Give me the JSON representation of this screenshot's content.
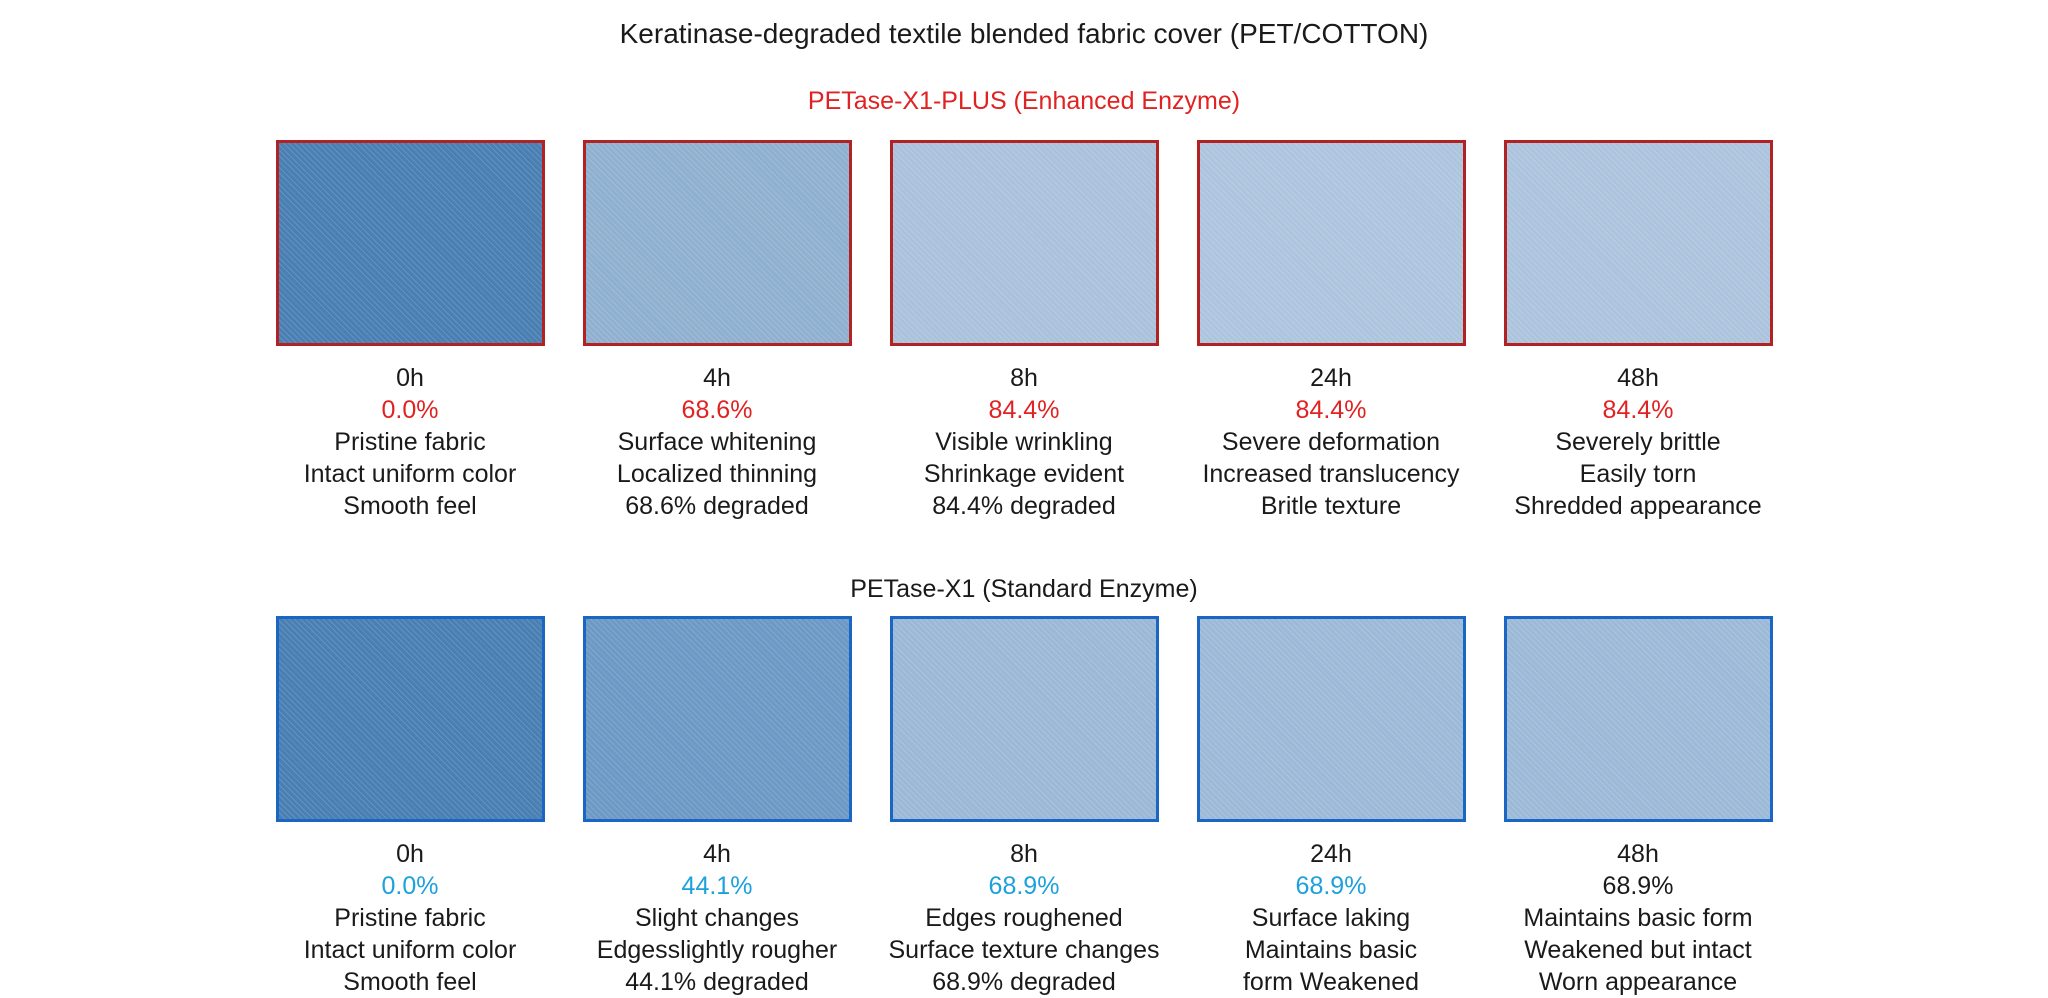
{
  "title": "Keratinase-degraded textile blended fabric cover (PET/COTTON)",
  "colors": {
    "background": "#ffffff",
    "body_text": "#1a1a1a",
    "enhanced_accent": "#e02222",
    "enhanced_swatch_border": "#b22222",
    "standard_accent": "#1da1dd",
    "standard_swatch_border": "#1a66c2"
  },
  "chart_data": {
    "type": "table",
    "title": "Keratinase-degraded textile blended fabric cover (PET/COTTON)",
    "categories": [
      "0h",
      "4h",
      "8h",
      "24h",
      "48h"
    ],
    "series": [
      {
        "name": "PETase-X1-PLUS (Enhanced Enzyme)",
        "values": [
          0.0,
          68.6,
          84.4,
          84.4,
          84.4
        ]
      },
      {
        "name": "PETase-X1 (Standard Enzyme)",
        "values": [
          0.0,
          44.1,
          68.9,
          68.9,
          68.9
        ]
      }
    ],
    "unit": "% degraded",
    "layout": "two rows of five fabric swatch photos, timepoint labels and degradation notes under each swatch"
  },
  "sections": [
    {
      "header": "PETase-X1-PLUS (Enhanced Enzyme)",
      "header_color": "#e02222",
      "border_color": "#b22222",
      "samples": [
        {
          "time": "0h",
          "percent": "0.0%",
          "percent_color": "#e02222",
          "swatch_color": "#4a80b4",
          "lines": [
            "Pristine fabric",
            "Intact uniform color",
            "Smooth feel"
          ]
        },
        {
          "time": "4h",
          "percent": "68.6%",
          "percent_color": "#e02222",
          "swatch_color": "#90b1d1",
          "lines": [
            "Surface whitening",
            "Localized thinning",
            "68.6% degraded"
          ]
        },
        {
          "time": "8h",
          "percent": "84.4%",
          "percent_color": "#e02222",
          "swatch_color": "#abc3dd",
          "lines": [
            "Visible wrinkling",
            "Shrinkage evident",
            "84.4% degraded"
          ]
        },
        {
          "time": "24h",
          "percent": "84.4%",
          "percent_color": "#e02222",
          "swatch_color": "#aec6df",
          "lines": [
            "Severe deformation",
            "Increased translucency",
            "Britle texture"
          ]
        },
        {
          "time": "48h",
          "percent": "84.4%",
          "percent_color": "#e02222",
          "swatch_color": "#adc5de",
          "lines": [
            "Severely brittle",
            "Easily torn",
            "Shredded appearance"
          ]
        }
      ]
    },
    {
      "header": "PETase-X1 (Standard Enzyme)",
      "header_color": "#1a1a1a",
      "border_color": "#1a66c2",
      "samples": [
        {
          "time": "0h",
          "percent": "0.0%",
          "percent_color": "#1da1dd",
          "swatch_color": "#4a80b4",
          "lines": [
            "Pristine fabric",
            "Intact uniform color",
            "Smooth feel"
          ]
        },
        {
          "time": "4h",
          "percent": "44.1%",
          "percent_color": "#1da1dd",
          "swatch_color": "#6e9ac6",
          "lines": [
            "Slight changes",
            "Edgesslightly rougher",
            "44.1% degraded"
          ]
        },
        {
          "time": "8h",
          "percent": "68.9%",
          "percent_color": "#1da1dd",
          "swatch_color": "#9cbad7",
          "lines": [
            "Edges roughened",
            "Surface texture changes",
            "68.9% degraded"
          ]
        },
        {
          "time": "24h",
          "percent": "68.9%",
          "percent_color": "#1da1dd",
          "swatch_color": "#9dbbd8",
          "lines": [
            "Surface laking",
            "Maintains basic",
            "form Weakened"
          ]
        },
        {
          "time": "48h",
          "percent": "68.9%",
          "percent_color": "#1a1a1a",
          "swatch_color": "#9dbbd8",
          "lines": [
            "Maintains basic form",
            "Weakened but intact",
            "Worn appearance"
          ]
        }
      ]
    }
  ]
}
